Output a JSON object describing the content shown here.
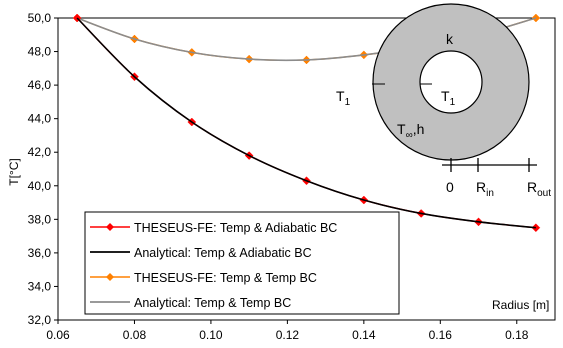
{
  "chart_data": {
    "type": "line",
    "xlabel": "Radius [m]",
    "ylabel": "T[°C]",
    "xlim": [
      0.06,
      0.19
    ],
    "ylim": [
      32.0,
      50.0
    ],
    "x_ticks": [
      "0.06",
      "0.08",
      "0.10",
      "0.12",
      "0.14",
      "0.16",
      "0.18"
    ],
    "y_ticks": [
      "32,0",
      "34,0",
      "36,0",
      "38,0",
      "40,0",
      "42,0",
      "44,0",
      "46,0",
      "48,0",
      "50,0"
    ],
    "grid": false,
    "legend_position": "bottom-left",
    "series": [
      {
        "name": "THESEUS-FE: Temp & Adiabatic BC",
        "style": "markers-line",
        "color": "#ff0000",
        "x": [
          0.065,
          0.08,
          0.095,
          0.11,
          0.125,
          0.14,
          0.155,
          0.17,
          0.185
        ],
        "y": [
          50.0,
          46.5,
          43.8,
          41.8,
          40.3,
          39.15,
          38.35,
          37.85,
          37.5
        ]
      },
      {
        "name": "Analytical: Temp & Adiabatic BC",
        "style": "line",
        "color": "#000000",
        "x": [
          0.065,
          0.08,
          0.095,
          0.11,
          0.125,
          0.14,
          0.155,
          0.17,
          0.185
        ],
        "y": [
          50.0,
          46.5,
          43.8,
          41.8,
          40.3,
          39.15,
          38.35,
          37.85,
          37.5
        ]
      },
      {
        "name": "THESEUS-FE: Temp & Temp BC",
        "style": "markers-line",
        "color": "#ff8000",
        "x": [
          0.065,
          0.08,
          0.095,
          0.11,
          0.125,
          0.14,
          0.155,
          0.17,
          0.185
        ],
        "y": [
          50.0,
          48.75,
          47.95,
          47.55,
          47.5,
          47.8,
          48.3,
          49.0,
          50.0
        ]
      },
      {
        "name": "Analytical: Temp & Temp BC",
        "style": "line",
        "color": "#8c8c8c",
        "x": [
          0.065,
          0.08,
          0.095,
          0.11,
          0.125,
          0.14,
          0.155,
          0.17,
          0.185
        ],
        "y": [
          50.0,
          48.75,
          47.95,
          47.55,
          47.5,
          47.8,
          48.3,
          49.0,
          50.0
        ]
      }
    ],
    "inset": {
      "outer_label": "k",
      "left_label": "T",
      "left_sub": "1",
      "inner_label": "T",
      "inner_sub": "1",
      "conv_label": "T",
      "conv_sub": "∞",
      "conv_suffix": ",h",
      "scale_zero": "0",
      "scale_rin": "R",
      "scale_rin_sub": "in",
      "scale_rout": "R",
      "scale_rout_sub": "out",
      "fill_color": "#c0c0c0"
    }
  }
}
